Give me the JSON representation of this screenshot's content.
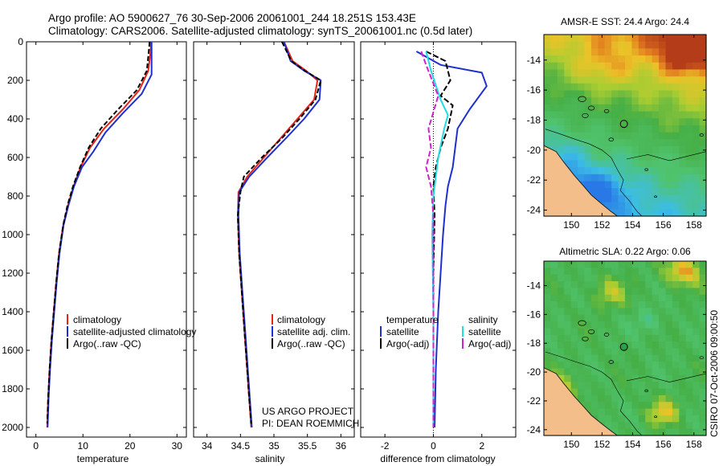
{
  "header": {
    "line1": "Argo profile: AO 5900627_76 30-Sep-2006 20061001_244 18.251S 153.43E",
    "line2": "Climatology: CARS2006. Satellite-adjusted climatology: synTS_20061001.nc (0.5d later)"
  },
  "colors": {
    "climatology": "#e8241a",
    "satellite": "#1e2fd0",
    "argo": "#000000",
    "sat_sal": "#20dde0",
    "argo_sal": "#d020d0"
  },
  "chart_data": [
    {
      "type": "line",
      "title": "",
      "xlabel": "temperature",
      "ylabel": "",
      "xlim": [
        -2,
        32
      ],
      "ylim": [
        2050,
        0
      ],
      "xticks": [
        0,
        10,
        20,
        30
      ],
      "yticks": [
        0,
        200,
        400,
        600,
        800,
        1000,
        1200,
        1400,
        1600,
        1800,
        2000
      ],
      "legend": [
        "climatology",
        "satellite-adjusted climatology",
        "Argo(..raw -QC)"
      ],
      "series": [
        {
          "name": "climatology",
          "x": [
            24.5,
            24.4,
            23.9,
            22.0,
            18.5,
            14.5,
            11.5,
            9.5,
            8.0,
            6.8,
            5.8,
            4.9,
            4.3,
            3.8,
            3.3,
            2.9,
            2.6,
            2.4
          ],
          "y": [
            0,
            50,
            150,
            250,
            350,
            450,
            550,
            650,
            750,
            850,
            950,
            1100,
            1250,
            1400,
            1550,
            1700,
            1850,
            2000
          ]
        },
        {
          "name": "satellite-adjusted climatology",
          "x": [
            24.6,
            24.6,
            24.6,
            22.5,
            18.5,
            14.8,
            12.2,
            9.8,
            8.1,
            6.9,
            5.9,
            5.0,
            4.4,
            3.9,
            3.4,
            3.0,
            2.7,
            2.5
          ],
          "y": [
            0,
            50,
            170,
            270,
            370,
            470,
            570,
            650,
            750,
            850,
            950,
            1100,
            1250,
            1400,
            1550,
            1700,
            1850,
            2000
          ]
        },
        {
          "name": "Argo(..raw -QC)",
          "x": [
            24.2,
            24.0,
            23.6,
            21.5,
            17.5,
            13.8,
            11.2,
            9.4,
            7.9,
            6.7,
            5.8,
            4.9,
            4.3,
            3.8,
            3.3,
            2.9,
            2.6,
            2.4
          ],
          "y": [
            0,
            50,
            150,
            250,
            350,
            450,
            550,
            650,
            750,
            850,
            950,
            1100,
            1250,
            1400,
            1550,
            1700,
            1850,
            1980
          ]
        }
      ]
    },
    {
      "type": "line",
      "title": "",
      "xlabel": "salinity",
      "ylabel": "",
      "xlim": [
        33.8,
        36.2
      ],
      "ylim": [
        2050,
        0
      ],
      "xticks": [
        34,
        34.5,
        35,
        35.5,
        36
      ],
      "yticks": [
        0,
        200,
        400,
        600,
        800,
        1000,
        1200,
        1400,
        1600,
        1800,
        2000
      ],
      "legend": [
        "climatology",
        "satellite adj. clim.",
        "Argo(..raw -QC)"
      ],
      "series": [
        {
          "name": "climatology",
          "x": [
            35.15,
            35.28,
            35.48,
            35.65,
            35.6,
            35.35,
            35.1,
            34.85,
            34.6,
            34.47,
            34.46,
            34.48,
            34.52,
            34.56,
            34.6,
            34.63,
            34.66
          ],
          "y": [
            0,
            100,
            150,
            200,
            300,
            400,
            500,
            600,
            700,
            780,
            900,
            1100,
            1300,
            1500,
            1700,
            1850,
            2000
          ]
        },
        {
          "name": "satellite adj. clim.",
          "x": [
            35.15,
            35.25,
            35.45,
            35.7,
            35.68,
            35.45,
            35.18,
            34.9,
            34.63,
            34.48,
            34.47,
            34.49,
            34.53,
            34.57,
            34.61,
            34.64,
            34.67
          ],
          "y": [
            0,
            100,
            150,
            200,
            300,
            400,
            500,
            600,
            700,
            780,
            900,
            1100,
            1300,
            1500,
            1700,
            1850,
            2000
          ]
        },
        {
          "name": "Argo(..raw -QC)",
          "x": [
            35.12,
            35.26,
            35.46,
            35.7,
            35.62,
            35.38,
            35.12,
            34.82,
            34.55,
            34.5,
            34.46,
            34.48,
            34.52,
            34.56,
            34.6,
            34.63,
            34.66
          ],
          "y": [
            0,
            100,
            150,
            200,
            300,
            400,
            500,
            600,
            700,
            780,
            900,
            1100,
            1300,
            1500,
            1700,
            1850,
            1980
          ]
        }
      ]
    },
    {
      "type": "line",
      "title": "",
      "xlabel": "difference from climatology",
      "ylabel": "",
      "xlim": [
        -3,
        3.4
      ],
      "ylim": [
        2050,
        0
      ],
      "xticks": [
        -2,
        0,
        2
      ],
      "yticks": [
        0,
        200,
        400,
        600,
        800,
        1000,
        1200,
        1400,
        1600,
        1800,
        2000
      ],
      "legend_left_header": "temperature",
      "legend_right_header": "salinity",
      "legend": [
        "satellite",
        "Argo(-adj)",
        "satellite",
        "Argo(-adj)"
      ],
      "series": [
        {
          "name": "temperature satellite",
          "x": [
            -0.7,
            0.3,
            2.0,
            2.2,
            1.5,
            1.0,
            0.9,
            0.8,
            0.6,
            0.5,
            0.4,
            0.3,
            0.2,
            0.1,
            0.05
          ],
          "y": [
            50,
            120,
            160,
            230,
            350,
            450,
            550,
            650,
            750,
            850,
            1000,
            1200,
            1400,
            1700,
            2000
          ]
        },
        {
          "name": "temperature Argo(-adj)",
          "x": [
            -0.3,
            0.5,
            0.7,
            0.3,
            0.8,
            0.6,
            0.3,
            0.1,
            0.0,
            0.05,
            0.0,
            0.0,
            0.0
          ],
          "y": [
            50,
            100,
            200,
            280,
            330,
            450,
            550,
            650,
            750,
            900,
            1200,
            1600,
            2000
          ]
        },
        {
          "name": "salinity satellite",
          "x": [
            -0.3,
            -0.1,
            0.3,
            0.6,
            0.45,
            0.2,
            0.0,
            -0.05,
            0.0,
            0.0
          ],
          "y": [
            50,
            150,
            300,
            380,
            450,
            600,
            800,
            1000,
            1400,
            2000
          ]
        },
        {
          "name": "salinity Argo(-adj)",
          "x": [
            -0.5,
            -0.3,
            0.2,
            -0.2,
            -0.1,
            -0.3,
            -0.1,
            0.0,
            0.0
          ],
          "y": [
            50,
            120,
            280,
            450,
            550,
            650,
            750,
            900,
            2000
          ]
        }
      ]
    },
    {
      "type": "heatmap",
      "title": "AMSR-E SST: 24.4 Argo: 24.4",
      "xlabel": "",
      "ylabel": "",
      "xlim": [
        148.2,
        158.8
      ],
      "ylim": [
        -24.4,
        -12.3
      ],
      "xticks": [
        150,
        152,
        154,
        156,
        158
      ],
      "yticks": [
        -14,
        -16,
        -18,
        -20,
        -22,
        -24
      ]
    },
    {
      "type": "heatmap",
      "title": "Altimetric SLA: 0.22 Argo: 0.06",
      "xlabel": "",
      "ylabel": "",
      "xlim": [
        148.2,
        158.8
      ],
      "ylim": [
        -24.4,
        -12.3
      ],
      "xticks": [
        150,
        152,
        154,
        156,
        158
      ],
      "yticks": [
        -14,
        -16,
        -18,
        -20,
        -22,
        -24
      ]
    }
  ],
  "annotations": {
    "project_line1": "US ARGO PROJECT",
    "project_line2": "PI: DEAN ROEMMICH",
    "stamp": "CSIRO 07-Oct-2006 09:00:50"
  }
}
